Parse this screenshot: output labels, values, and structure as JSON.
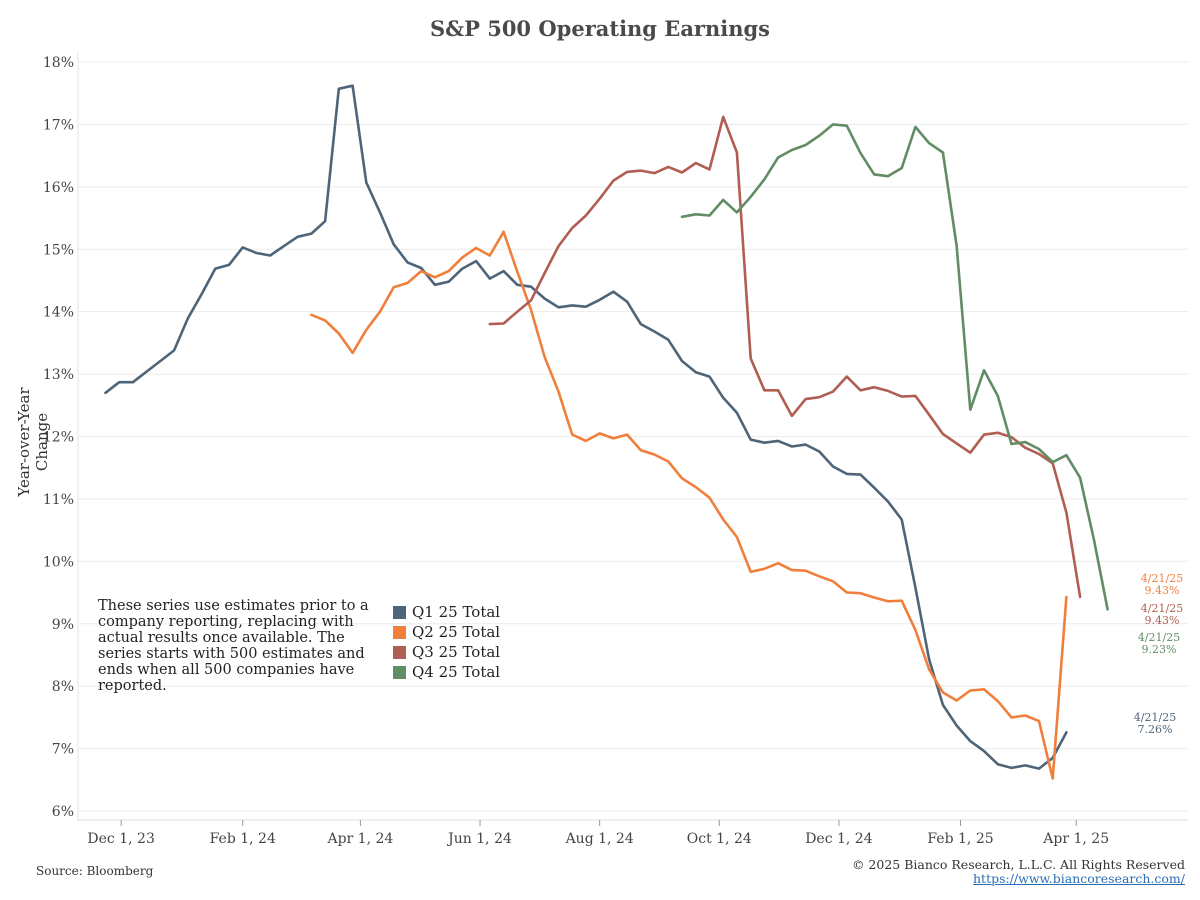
{
  "chart_data": {
    "type": "line",
    "title": "S&P 500 Operating Earnings",
    "ylabel": "Year-over-Year Change",
    "xlabel": "",
    "ylim": [
      6,
      18
    ],
    "xlim": [
      "2023-11-09",
      "2025-05-28"
    ],
    "y_ticks": [
      "6%",
      "7%",
      "8%",
      "9%",
      "10%",
      "11%",
      "12%",
      "13%",
      "14%",
      "15%",
      "16%",
      "17%",
      "18%"
    ],
    "x_ticks": [
      {
        "date": "2023-12-01",
        "label": "Dec 1, 23"
      },
      {
        "date": "2024-02-01",
        "label": "Feb 1, 24"
      },
      {
        "date": "2024-04-01",
        "label": "Apr 1, 24"
      },
      {
        "date": "2024-06-01",
        "label": "Jun 1, 24"
      },
      {
        "date": "2024-08-01",
        "label": "Aug 1, 24"
      },
      {
        "date": "2024-10-01",
        "label": "Oct 1, 24"
      },
      {
        "date": "2024-12-01",
        "label": "Dec 1, 24"
      },
      {
        "date": "2025-02-01",
        "label": "Feb 1, 25"
      },
      {
        "date": "2025-04-01",
        "label": "Apr 1, 25"
      }
    ],
    "grid": "horizontal",
    "legend_position": "bottom-left",
    "series": [
      {
        "name": "Q1 25 Total",
        "color": "#4e6579",
        "points": [
          [
            "2023-11-23",
            12.7
          ],
          [
            "2023-11-30",
            12.87
          ],
          [
            "2023-12-07",
            12.87
          ],
          [
            "2023-12-14",
            13.04
          ],
          [
            "2023-12-21",
            13.21
          ],
          [
            "2023-12-28",
            13.38
          ],
          [
            "2024-01-04",
            13.89
          ],
          [
            "2024-01-11",
            14.28
          ],
          [
            "2024-01-18",
            14.69
          ],
          [
            "2024-01-25",
            14.75
          ],
          [
            "2024-02-01",
            15.03
          ],
          [
            "2024-02-08",
            14.94
          ],
          [
            "2024-02-15",
            14.9
          ],
          [
            "2024-02-22",
            15.05
          ],
          [
            "2024-02-29",
            15.2
          ],
          [
            "2024-03-07",
            15.25
          ],
          [
            "2024-03-14",
            15.45
          ],
          [
            "2024-03-21",
            17.57
          ],
          [
            "2024-03-28",
            17.62
          ],
          [
            "2024-04-04",
            16.07
          ],
          [
            "2024-04-11",
            15.59
          ],
          [
            "2024-04-18",
            15.08
          ],
          [
            "2024-04-25",
            14.79
          ],
          [
            "2024-05-02",
            14.7
          ],
          [
            "2024-05-09",
            14.43
          ],
          [
            "2024-05-16",
            14.48
          ],
          [
            "2024-05-23",
            14.69
          ],
          [
            "2024-05-30",
            14.81
          ],
          [
            "2024-06-06",
            14.53
          ],
          [
            "2024-06-13",
            14.65
          ],
          [
            "2024-06-20",
            14.43
          ],
          [
            "2024-06-27",
            14.4
          ],
          [
            "2024-07-04",
            14.21
          ],
          [
            "2024-07-11",
            14.07
          ],
          [
            "2024-07-18",
            14.1
          ],
          [
            "2024-07-25",
            14.08
          ],
          [
            "2024-08-01",
            14.19
          ],
          [
            "2024-08-08",
            14.32
          ],
          [
            "2024-08-15",
            14.16
          ],
          [
            "2024-08-22",
            13.8
          ],
          [
            "2024-08-29",
            13.68
          ],
          [
            "2024-09-05",
            13.55
          ],
          [
            "2024-09-12",
            13.21
          ],
          [
            "2024-09-19",
            13.03
          ],
          [
            "2024-09-26",
            12.96
          ],
          [
            "2024-10-03",
            12.62
          ],
          [
            "2024-10-10",
            12.38
          ],
          [
            "2024-10-17",
            11.95
          ],
          [
            "2024-10-24",
            11.9
          ],
          [
            "2024-10-31",
            11.93
          ],
          [
            "2024-11-07",
            11.84
          ],
          [
            "2024-11-14",
            11.87
          ],
          [
            "2024-11-21",
            11.76
          ],
          [
            "2024-11-28",
            11.52
          ],
          [
            "2024-12-05",
            11.4
          ],
          [
            "2024-12-12",
            11.39
          ],
          [
            "2024-12-19",
            11.18
          ],
          [
            "2024-12-26",
            10.96
          ],
          [
            "2025-01-02",
            10.67
          ],
          [
            "2025-01-09",
            9.58
          ],
          [
            "2025-01-16",
            8.43
          ],
          [
            "2025-01-23",
            7.7
          ],
          [
            "2025-01-30",
            7.37
          ],
          [
            "2025-02-06",
            7.12
          ],
          [
            "2025-02-13",
            6.96
          ],
          [
            "2025-02-20",
            6.75
          ],
          [
            "2025-02-27",
            6.69
          ],
          [
            "2025-03-06",
            6.73
          ],
          [
            "2025-03-13",
            6.68
          ],
          [
            "2025-03-20",
            6.85
          ],
          [
            "2025-03-27",
            7.26
          ]
        ],
        "end_label": {
          "date": "4/21/25",
          "value": "7.26%"
        }
      },
      {
        "name": "Q2 25 Total",
        "color": "#f07f3c",
        "points": [
          [
            "2024-03-07",
            13.95
          ],
          [
            "2024-03-14",
            13.86
          ],
          [
            "2024-03-21",
            13.65
          ],
          [
            "2024-03-28",
            13.34
          ],
          [
            "2024-04-04",
            13.71
          ],
          [
            "2024-04-11",
            14.0
          ],
          [
            "2024-04-18",
            14.39
          ],
          [
            "2024-04-25",
            14.46
          ],
          [
            "2024-05-02",
            14.65
          ],
          [
            "2024-05-09",
            14.55
          ],
          [
            "2024-05-16",
            14.65
          ],
          [
            "2024-05-23",
            14.87
          ],
          [
            "2024-05-30",
            15.02
          ],
          [
            "2024-06-06",
            14.9
          ],
          [
            "2024-06-13",
            15.28
          ],
          [
            "2024-06-20",
            14.64
          ],
          [
            "2024-06-27",
            14.03
          ],
          [
            "2024-07-04",
            13.27
          ],
          [
            "2024-07-11",
            12.72
          ],
          [
            "2024-07-18",
            12.03
          ],
          [
            "2024-07-25",
            11.93
          ],
          [
            "2024-08-01",
            12.05
          ],
          [
            "2024-08-08",
            11.97
          ],
          [
            "2024-08-15",
            12.03
          ],
          [
            "2024-08-22",
            11.78
          ],
          [
            "2024-08-29",
            11.71
          ],
          [
            "2024-09-05",
            11.6
          ],
          [
            "2024-09-12",
            11.33
          ],
          [
            "2024-09-19",
            11.19
          ],
          [
            "2024-09-26",
            11.02
          ],
          [
            "2024-10-03",
            10.67
          ],
          [
            "2024-10-10",
            10.39
          ],
          [
            "2024-10-17",
            9.83
          ],
          [
            "2024-10-24",
            9.88
          ],
          [
            "2024-10-31",
            9.97
          ],
          [
            "2024-11-07",
            9.86
          ],
          [
            "2024-11-14",
            9.85
          ],
          [
            "2024-11-21",
            9.76
          ],
          [
            "2024-11-28",
            9.68
          ],
          [
            "2024-12-05",
            9.5
          ],
          [
            "2024-12-12",
            9.49
          ],
          [
            "2024-12-19",
            9.42
          ],
          [
            "2024-12-26",
            9.36
          ],
          [
            "2025-01-02",
            9.37
          ],
          [
            "2025-01-09",
            8.9
          ],
          [
            "2025-01-16",
            8.27
          ],
          [
            "2025-01-23",
            7.9
          ],
          [
            "2025-01-30",
            7.77
          ],
          [
            "2025-02-06",
            7.93
          ],
          [
            "2025-02-13",
            7.95
          ],
          [
            "2025-02-20",
            7.76
          ],
          [
            "2025-02-27",
            7.5
          ],
          [
            "2025-03-06",
            7.53
          ],
          [
            "2025-03-13",
            7.44
          ],
          [
            "2025-03-20",
            6.52
          ],
          [
            "2025-03-27",
            9.43
          ]
        ],
        "end_label": {
          "date": "4/21/25",
          "value": "9.43%"
        }
      },
      {
        "name": "Q3 25 Total",
        "color": "#b15e52",
        "points": [
          [
            "2024-06-06",
            13.8
          ],
          [
            "2024-06-13",
            13.81
          ],
          [
            "2024-06-20",
            14.0
          ],
          [
            "2024-06-27",
            14.18
          ],
          [
            "2024-07-04",
            14.62
          ],
          [
            "2024-07-11",
            15.05
          ],
          [
            "2024-07-18",
            15.34
          ],
          [
            "2024-07-25",
            15.54
          ],
          [
            "2024-08-01",
            15.81
          ],
          [
            "2024-08-08",
            16.1
          ],
          [
            "2024-08-15",
            16.24
          ],
          [
            "2024-08-22",
            16.26
          ],
          [
            "2024-08-29",
            16.22
          ],
          [
            "2024-09-05",
            16.32
          ],
          [
            "2024-09-12",
            16.23
          ],
          [
            "2024-09-19",
            16.38
          ],
          [
            "2024-09-26",
            16.28
          ],
          [
            "2024-10-03",
            17.12
          ],
          [
            "2024-10-10",
            16.55
          ],
          [
            "2024-10-17",
            13.25
          ],
          [
            "2024-10-24",
            12.74
          ],
          [
            "2024-10-31",
            12.74
          ],
          [
            "2024-11-07",
            12.33
          ],
          [
            "2024-11-14",
            12.6
          ],
          [
            "2024-11-21",
            12.63
          ],
          [
            "2024-11-28",
            12.72
          ],
          [
            "2024-12-05",
            12.96
          ],
          [
            "2024-12-12",
            12.74
          ],
          [
            "2024-12-19",
            12.79
          ],
          [
            "2024-12-26",
            12.73
          ],
          [
            "2025-01-02",
            12.64
          ],
          [
            "2025-01-09",
            12.65
          ],
          [
            "2025-01-16",
            12.35
          ],
          [
            "2025-01-23",
            12.04
          ],
          [
            "2025-01-30",
            11.89
          ],
          [
            "2025-02-06",
            11.74
          ],
          [
            "2025-02-13",
            12.03
          ],
          [
            "2025-02-20",
            12.06
          ],
          [
            "2025-02-27",
            11.99
          ],
          [
            "2025-03-06",
            11.82
          ],
          [
            "2025-03-13",
            11.72
          ],
          [
            "2025-03-20",
            11.57
          ],
          [
            "2025-03-27",
            10.78
          ],
          [
            "2025-04-03",
            9.43
          ]
        ],
        "end_label": {
          "date": "4/21/25",
          "value": "9.43%"
        }
      },
      {
        "name": "Q4 25 Total",
        "color": "#628c64",
        "points": [
          [
            "2024-09-12",
            15.52
          ],
          [
            "2024-09-19",
            15.56
          ],
          [
            "2024-09-26",
            15.54
          ],
          [
            "2024-10-03",
            15.79
          ],
          [
            "2024-10-10",
            15.59
          ],
          [
            "2024-10-17",
            15.84
          ],
          [
            "2024-10-24",
            16.12
          ],
          [
            "2024-10-31",
            16.47
          ],
          [
            "2024-11-07",
            16.59
          ],
          [
            "2024-11-14",
            16.67
          ],
          [
            "2024-11-21",
            16.82
          ],
          [
            "2024-11-28",
            17.0
          ],
          [
            "2024-12-05",
            16.98
          ],
          [
            "2024-12-12",
            16.54
          ],
          [
            "2024-12-19",
            16.2
          ],
          [
            "2024-12-26",
            16.17
          ],
          [
            "2025-01-02",
            16.3
          ],
          [
            "2025-01-09",
            16.96
          ],
          [
            "2025-01-16",
            16.7
          ],
          [
            "2025-01-23",
            16.55
          ],
          [
            "2025-01-30",
            15.06
          ],
          [
            "2025-02-06",
            12.43
          ],
          [
            "2025-02-13",
            13.06
          ],
          [
            "2025-02-20",
            12.65
          ],
          [
            "2025-02-27",
            11.88
          ],
          [
            "2025-03-06",
            11.91
          ],
          [
            "2025-03-13",
            11.8
          ],
          [
            "2025-03-20",
            11.59
          ],
          [
            "2025-03-27",
            11.7
          ],
          [
            "2025-04-03",
            11.34
          ],
          [
            "2025-04-10",
            10.35
          ],
          [
            "2025-04-17",
            9.23
          ]
        ],
        "end_label": {
          "date": "4/21/25",
          "value": "9.23%"
        }
      }
    ]
  },
  "note": "These series use estimates prior to a company reporting, replacing with actual results once available. The series starts with 500 estimates and ends when all 500 companies have reported.",
  "footer": {
    "source": "Source: Bloomberg",
    "copyright": "© 2025 Bianco Research, L.L.C. All Rights Reserved",
    "url": "https://www.biancoresearch.com/"
  }
}
